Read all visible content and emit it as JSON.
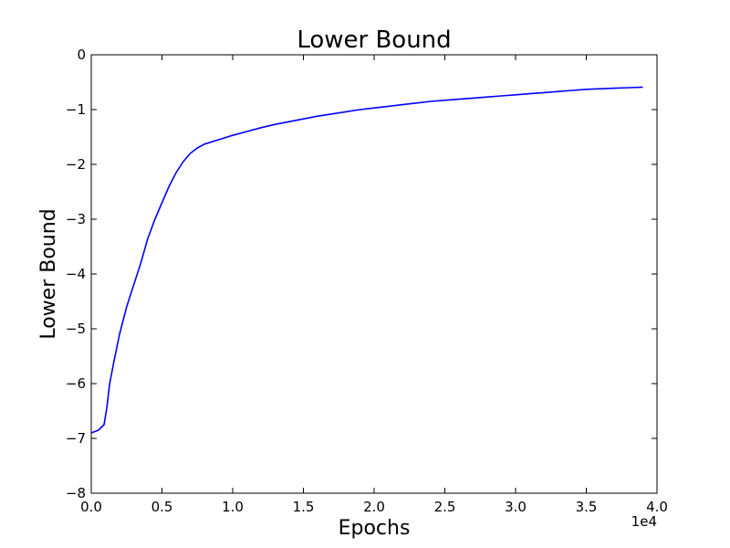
{
  "chart_data": {
    "type": "line",
    "title": "Lower Bound",
    "xlabel": "Epochs",
    "ylabel": "Lower Bound",
    "x_offset_label": "1e4",
    "xlim": [
      0,
      40000
    ],
    "ylim": [
      -8,
      0
    ],
    "grid": false,
    "x_ticks": [
      {
        "value": 0,
        "label": "0.0"
      },
      {
        "value": 5000,
        "label": "0.5"
      },
      {
        "value": 10000,
        "label": "1.0"
      },
      {
        "value": 15000,
        "label": "1.5"
      },
      {
        "value": 20000,
        "label": "2.0"
      },
      {
        "value": 25000,
        "label": "2.5"
      },
      {
        "value": 30000,
        "label": "3.0"
      },
      {
        "value": 35000,
        "label": "3.5"
      },
      {
        "value": 40000,
        "label": "4.0"
      }
    ],
    "y_ticks": [
      {
        "value": 0,
        "label": "0"
      },
      {
        "value": -1,
        "label": "−1"
      },
      {
        "value": -2,
        "label": "−2"
      },
      {
        "value": -3,
        "label": "−3"
      },
      {
        "value": -4,
        "label": "−4"
      },
      {
        "value": -5,
        "label": "−5"
      },
      {
        "value": -6,
        "label": "−6"
      },
      {
        "value": -7,
        "label": "−7"
      },
      {
        "value": -8,
        "label": "−8"
      }
    ],
    "series": [
      {
        "color": "#0000ff",
        "x": [
          0,
          500,
          900,
          1100,
          1300,
          1600,
          2000,
          2500,
          3000,
          3500,
          4000,
          4500,
          5000,
          5500,
          6000,
          6500,
          7000,
          7500,
          8000,
          9000,
          10000,
          11000,
          12000,
          13000,
          14000,
          15000,
          16000,
          17000,
          18000,
          19000,
          20000,
          21000,
          22000,
          23000,
          24000,
          25000,
          26000,
          27000,
          28000,
          29000,
          30000,
          31000,
          32000,
          33000,
          34000,
          35000,
          36000,
          37000,
          38000,
          39000
        ],
        "y": [
          -6.9,
          -6.85,
          -6.75,
          -6.45,
          -6.0,
          -5.6,
          -5.1,
          -4.6,
          -4.2,
          -3.8,
          -3.35,
          -3.0,
          -2.7,
          -2.4,
          -2.15,
          -1.95,
          -1.8,
          -1.7,
          -1.63,
          -1.55,
          -1.47,
          -1.4,
          -1.33,
          -1.27,
          -1.22,
          -1.17,
          -1.12,
          -1.08,
          -1.04,
          -1.0,
          -0.97,
          -0.94,
          -0.91,
          -0.88,
          -0.85,
          -0.83,
          -0.81,
          -0.79,
          -0.77,
          -0.75,
          -0.73,
          -0.71,
          -0.69,
          -0.67,
          -0.65,
          -0.63,
          -0.62,
          -0.61,
          -0.6,
          -0.59
        ]
      }
    ]
  }
}
